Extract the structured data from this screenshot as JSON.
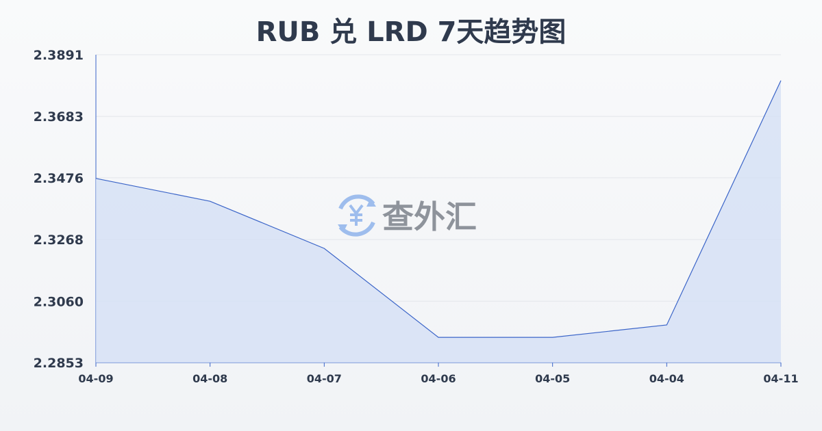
{
  "chart_data": {
    "type": "area",
    "title": "RUB 兑 LRD 7天趋势图",
    "xlabel": "",
    "ylabel": "",
    "categories": [
      "04-09",
      "04-08",
      "04-07",
      "04-06",
      "04-05",
      "04-04",
      "04-11"
    ],
    "values": [
      2.3474,
      2.3397,
      2.3238,
      2.2938,
      2.2938,
      2.298,
      2.3804
    ],
    "yticks": [
      "2.2853",
      "2.3060",
      "2.3268",
      "2.3476",
      "2.3683",
      "2.3891"
    ],
    "ylim": [
      2.2853,
      2.3891
    ],
    "grid": true,
    "colors": {
      "line": "#3a64c8",
      "fill": "#d5e0f5",
      "grid": "#e3e6eb"
    }
  },
  "watermark": {
    "text": "查外汇",
    "icon": "yen-exchange-icon"
  }
}
